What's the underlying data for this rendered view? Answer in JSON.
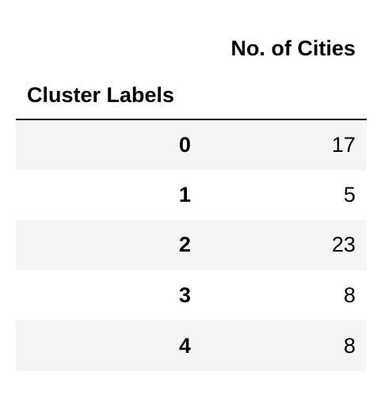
{
  "table": {
    "columns_header": "No. of Cities",
    "index_name": "Cluster Labels",
    "rows": [
      {
        "label": "0",
        "value": "17"
      },
      {
        "label": "1",
        "value": "5"
      },
      {
        "label": "2",
        "value": "23"
      },
      {
        "label": "3",
        "value": "8"
      },
      {
        "label": "4",
        "value": "8"
      }
    ]
  },
  "colors": {
    "stripe": "#f5f5f5",
    "background": "#ffffff",
    "text": "#000000",
    "rule": "#000000"
  }
}
